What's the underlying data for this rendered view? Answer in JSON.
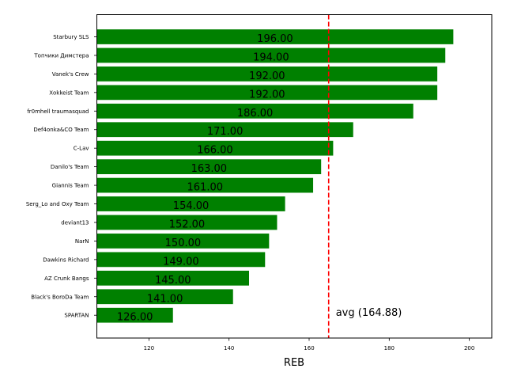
{
  "chart_data": {
    "type": "bar",
    "orientation": "horizontal",
    "title": "",
    "xlabel": "REB",
    "ylabel": "",
    "categories": [
      "Starbury SLS",
      "Топчики Димстера",
      "Vanek's Crew",
      "Xokkeist Team",
      "fr0mhell traumasquad",
      "Def4onka&CO Team",
      "C-Lav",
      "Danilo's Team",
      "Giannis Team",
      "Serg_Lo and Oxy Team",
      "deviant13",
      "NarN",
      "Dawkins Richard",
      "AZ Crunk Bangs",
      "Black's BoroDa Team",
      "SPARTAN"
    ],
    "values": [
      196,
      194,
      192,
      192,
      186,
      171,
      166,
      163,
      161,
      154,
      152,
      150,
      149,
      145,
      141,
      126
    ],
    "value_labels": [
      "196.00",
      "194.00",
      "192.00",
      "192.00",
      "186.00",
      "171.00",
      "166.00",
      "163.00",
      "161.00",
      "154.00",
      "152.00",
      "150.00",
      "149.00",
      "145.00",
      "141.00",
      "126.00"
    ],
    "xlim": [
      107.0,
      205.6
    ],
    "xticks": [
      120,
      140,
      160,
      180,
      200
    ],
    "grid": false,
    "legend": null,
    "bar_color": "#008000",
    "reference_line": {
      "value": 164.88,
      "label": "avg (164.88)",
      "style": "dashed",
      "color": "#ff0000"
    }
  }
}
